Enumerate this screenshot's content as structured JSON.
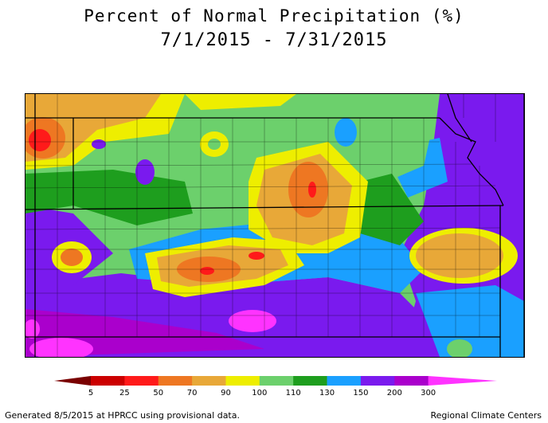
{
  "title": "Percent of Normal Precipitation (%)",
  "date_range": "7/1/2015 - 7/31/2015",
  "legend": {
    "ticks": [
      "5",
      "25",
      "50",
      "70",
      "90",
      "100",
      "110",
      "130",
      "150",
      "200",
      "300"
    ],
    "colors": [
      "#7a0000",
      "#cc0000",
      "#ff1a1a",
      "#ee7722",
      "#e8a838",
      "#eeee00",
      "#6cd06c",
      "#1e9e1e",
      "#1aa0ff",
      "#7a1aee",
      "#aa00cc",
      "#ff33ff"
    ]
  },
  "footer": {
    "generated": "Generated 8/5/2015 at HPRCC using provisional data.",
    "source": "Regional Climate Centers"
  }
}
